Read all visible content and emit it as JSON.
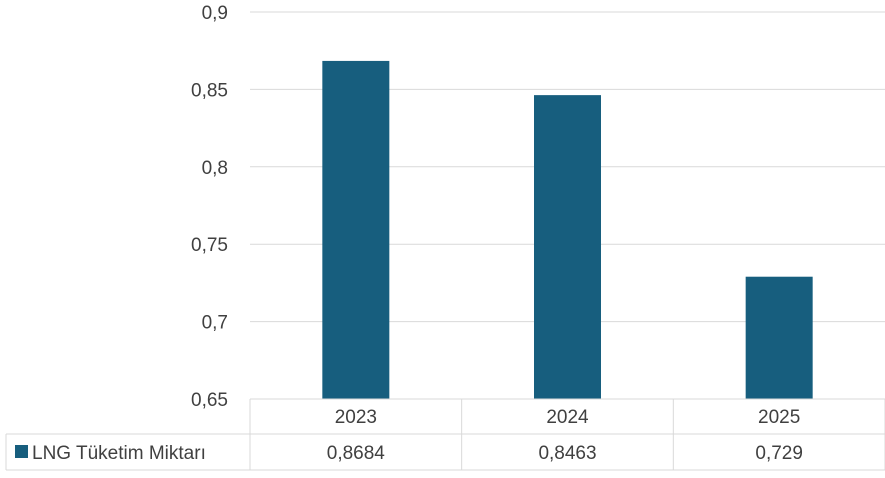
{
  "chart_data": {
    "type": "bar",
    "categories": [
      "2023",
      "2024",
      "2025"
    ],
    "series": [
      {
        "name": "LNG Tüketim Miktarı",
        "values": [
          0.8684,
          0.8463,
          0.729
        ],
        "value_labels": [
          "0,8684",
          "0,8463",
          "0,729"
        ]
      }
    ],
    "ylim": [
      0.65,
      0.9
    ],
    "yticks": [
      0.65,
      0.7,
      0.75,
      0.8,
      0.85,
      0.9
    ],
    "ytick_labels": [
      "0,65",
      "0,7",
      "0,75",
      "0,8",
      "0,85",
      "0,9"
    ],
    "grid": true,
    "legend": "data-table",
    "bar_color": "#175E7E",
    "grid_color": "#D9D9D9"
  }
}
